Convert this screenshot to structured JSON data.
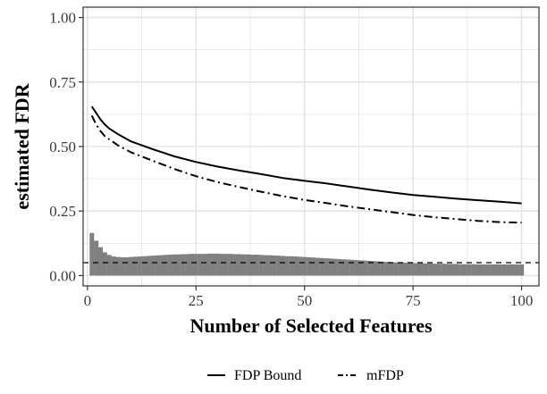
{
  "chart_data": {
    "type": "line",
    "xlabel": "Number of Selected Features",
    "ylabel": "estimated FDR",
    "xlim": [
      -1,
      104
    ],
    "ylim": [
      -0.04,
      1.04
    ],
    "xticks": [
      0,
      25,
      50,
      75,
      100
    ],
    "yticks": [
      0.0,
      0.25,
      0.5,
      0.75,
      1.0
    ],
    "ytick_labels": [
      "0.00",
      "0.25",
      "0.50",
      "0.75",
      "1.00"
    ],
    "xtick_labels": [
      "0",
      "25",
      "50",
      "75",
      "100"
    ],
    "grid": true,
    "legend_position": "bottom",
    "reference_line": {
      "y": 0.05,
      "style": "dashed"
    },
    "series": [
      {
        "name": "FDP Bound",
        "style": "solid",
        "x": [
          1,
          2,
          3,
          4,
          5,
          7,
          10,
          15,
          20,
          25,
          30,
          35,
          40,
          45,
          50,
          55,
          60,
          65,
          70,
          75,
          80,
          85,
          90,
          95,
          100
        ],
        "y": [
          0.655,
          0.63,
          0.605,
          0.585,
          0.57,
          0.548,
          0.52,
          0.49,
          0.462,
          0.44,
          0.422,
          0.407,
          0.393,
          0.378,
          0.367,
          0.357,
          0.345,
          0.333,
          0.322,
          0.312,
          0.305,
          0.298,
          0.292,
          0.286,
          0.28
        ]
      },
      {
        "name": "mFDP",
        "style": "dashdot",
        "x": [
          1,
          2,
          3,
          4,
          5,
          7,
          10,
          15,
          20,
          25,
          30,
          35,
          40,
          45,
          50,
          55,
          60,
          65,
          70,
          75,
          80,
          85,
          90,
          95,
          100
        ],
        "y": [
          0.62,
          0.585,
          0.56,
          0.54,
          0.528,
          0.505,
          0.478,
          0.445,
          0.413,
          0.385,
          0.362,
          0.343,
          0.325,
          0.308,
          0.293,
          0.281,
          0.268,
          0.257,
          0.246,
          0.235,
          0.226,
          0.219,
          0.212,
          0.207,
          0.205
        ]
      }
    ],
    "histogram": {
      "baseline": 0.0,
      "x_start": 1,
      "x_end": 100,
      "heights": [
        0.165,
        0.135,
        0.11,
        0.09,
        0.08,
        0.074,
        0.072,
        0.071,
        0.071,
        0.072,
        0.073,
        0.074,
        0.075,
        0.076,
        0.077,
        0.078,
        0.079,
        0.08,
        0.081,
        0.082,
        0.082,
        0.083,
        0.083,
        0.084,
        0.084,
        0.084,
        0.084,
        0.085,
        0.085,
        0.085,
        0.084,
        0.084,
        0.084,
        0.083,
        0.083,
        0.082,
        0.082,
        0.081,
        0.081,
        0.08,
        0.079,
        0.079,
        0.078,
        0.077,
        0.076,
        0.075,
        0.075,
        0.074,
        0.073,
        0.072,
        0.071,
        0.07,
        0.069,
        0.068,
        0.067,
        0.066,
        0.065,
        0.064,
        0.063,
        0.062,
        0.061,
        0.06,
        0.059,
        0.058,
        0.057,
        0.056,
        0.055,
        0.054,
        0.053,
        0.052,
        0.051,
        0.05,
        0.05,
        0.049,
        0.049,
        0.048,
        0.048,
        0.047,
        0.047,
        0.046,
        0.046,
        0.046,
        0.045,
        0.045,
        0.045,
        0.044,
        0.044,
        0.044,
        0.044,
        0.043,
        0.043,
        0.043,
        0.043,
        0.043,
        0.043,
        0.043,
        0.043,
        0.043,
        0.043,
        0.043
      ]
    },
    "colors": {
      "line": "#000000",
      "histogram": "#808080",
      "panel_border": "#333333",
      "grid": "#e5e5e5",
      "reference": "#000000"
    }
  }
}
